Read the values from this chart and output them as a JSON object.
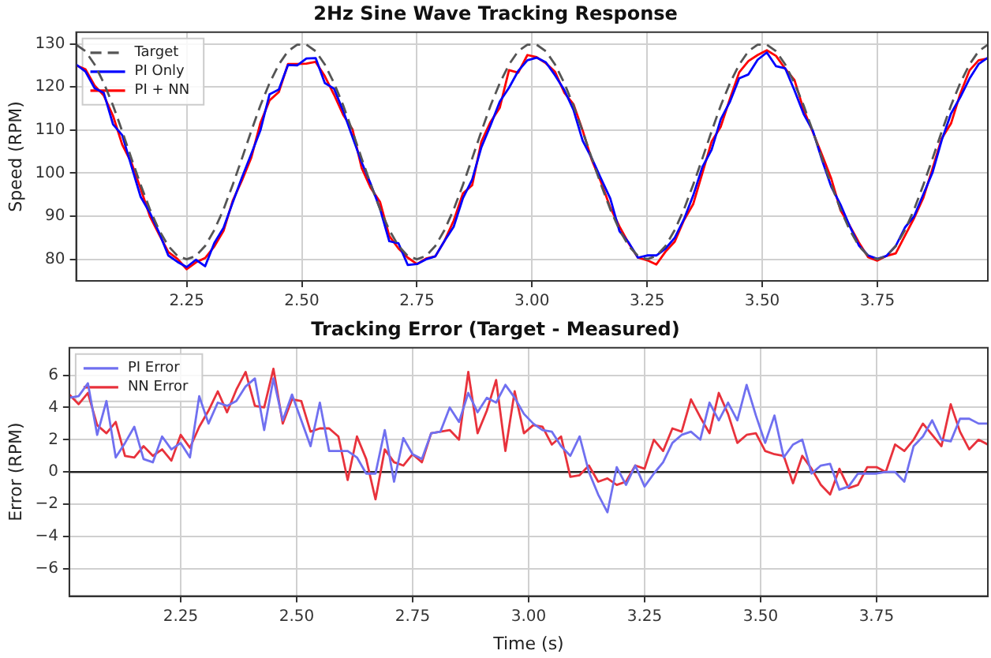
{
  "chart_data": [
    {
      "type": "line",
      "title": "2Hz Sine Wave Tracking Response",
      "ylabel": "Speed (RPM)",
      "legend": "top left",
      "grid": true,
      "marker": "none",
      "xlim": [
        2.01,
        3.99
      ],
      "ylim": [
        75,
        132.7
      ],
      "xticks": [
        {
          "value": 2.25,
          "label": "2.25"
        },
        {
          "value": 2.5,
          "label": "2.50"
        },
        {
          "value": 2.75,
          "label": "2.75"
        },
        {
          "value": 3,
          "label": "3.00"
        },
        {
          "value": 3.25,
          "label": "3.25"
        },
        {
          "value": 3.5,
          "label": "3.50"
        },
        {
          "value": 3.75,
          "label": "3.75"
        }
      ],
      "yticks": [
        80,
        90,
        100,
        110,
        120,
        130
      ],
      "x": [
        2.01,
        2.03,
        2.05,
        2.07,
        2.09,
        2.11,
        2.13,
        2.15,
        2.17,
        2.19,
        2.21,
        2.23,
        2.25,
        2.27,
        2.29,
        2.31,
        2.33,
        2.35,
        2.37,
        2.39,
        2.41,
        2.43,
        2.45,
        2.47,
        2.49,
        2.51,
        2.53,
        2.55,
        2.57,
        2.59,
        2.61,
        2.63,
        2.65,
        2.67,
        2.69,
        2.71,
        2.73,
        2.75,
        2.77,
        2.79,
        2.81,
        2.83,
        2.85,
        2.87,
        2.89,
        2.91,
        2.93,
        2.95,
        2.97,
        2.99,
        3.01,
        3.03,
        3.05,
        3.07,
        3.09,
        3.11,
        3.13,
        3.15,
        3.17,
        3.19,
        3.21,
        3.23,
        3.25,
        3.27,
        3.29,
        3.31,
        3.33,
        3.35,
        3.37,
        3.39,
        3.41,
        3.43,
        3.45,
        3.47,
        3.49,
        3.51,
        3.53,
        3.55,
        3.57,
        3.59,
        3.61,
        3.63,
        3.65,
        3.67,
        3.69,
        3.71,
        3.73,
        3.75,
        3.77,
        3.79,
        3.81,
        3.83,
        3.85,
        3.87,
        3.89,
        3.91,
        3.93,
        3.95,
        3.97,
        3.99
      ],
      "series": [
        {
          "name": "Target",
          "color": "#555555",
          "line_style": "dashed",
          "values": [
            129.8,
            128.3,
            125.2,
            120.9,
            115.7,
            109.7,
            103.4,
            97.3,
            91.6,
            86.8,
            83.1,
            80.8,
            80.0,
            80.8,
            83.1,
            86.8,
            91.6,
            97.3,
            103.4,
            109.7,
            115.7,
            120.9,
            125.2,
            128.3,
            129.8,
            129.8,
            128.3,
            125.2,
            120.9,
            115.7,
            109.7,
            103.4,
            97.3,
            91.6,
            86.8,
            83.1,
            80.8,
            80.0,
            80.8,
            83.1,
            86.8,
            91.6,
            97.3,
            103.4,
            109.7,
            115.7,
            120.9,
            125.2,
            128.3,
            129.8,
            129.8,
            128.3,
            125.2,
            120.9,
            115.7,
            109.7,
            103.4,
            97.3,
            91.6,
            86.8,
            83.1,
            80.8,
            80.0,
            80.8,
            83.1,
            86.8,
            91.6,
            97.3,
            103.4,
            109.7,
            115.7,
            120.9,
            125.2,
            128.3,
            129.8,
            129.8,
            128.3,
            125.2,
            120.9,
            115.7,
            109.7,
            103.4,
            97.3,
            91.6,
            86.8,
            83.1,
            80.8,
            80.0,
            80.8,
            83.1,
            86.8,
            91.6,
            97.3,
            103.4,
            109.7,
            115.7,
            120.9,
            125.2,
            128.3,
            129.8
          ]
        },
        {
          "name": "PI Only",
          "color": "#0000ff",
          "values": [
            125.2,
            123.6,
            119.7,
            118.6,
            111.3,
            108.8,
            101.6,
            94.5,
            90.8,
            86.2,
            80.9,
            79.4,
            78.2,
            79.9,
            78.4,
            83.8,
            87.3,
            93.2,
            99.0,
            104.4,
            109.9,
            118.3,
            119.4,
            125.1,
            125.0,
            126.6,
            126.7,
            120.9,
            119.6,
            114.4,
            108.4,
            102.5,
            97.4,
            91.7,
            84.2,
            83.7,
            78.7,
            78.9,
            80.0,
            80.7,
            84.3,
            87.6,
            94.2,
            98.5,
            106.0,
            111.1,
            116.6,
            119.8,
            123.7,
            126.2,
            126.8,
            125.7,
            122.7,
            119.3,
            114.7,
            107.5,
            103.4,
            98.7,
            94.1,
            86.5,
            83.9,
            80.4,
            80.9,
            80.9,
            82.5,
            85.0,
            89.3,
            94.8,
            101.4,
            105.4,
            112.5,
            116.6,
            122.0,
            122.9,
            126.3,
            128.0,
            124.8,
            124.3,
            119.2,
            113.7,
            109.8,
            103.0,
            96.8,
            92.7,
            87.7,
            83.2,
            80.9,
            80.1,
            80.8,
            83.1,
            87.4,
            90.0,
            95.1,
            100.2,
            107.7,
            113.8,
            117.6,
            121.9,
            125.3,
            126.8
          ]
        },
        {
          "name": "PI + NN",
          "color": "#ff0000",
          "values": [
            125.0,
            124.1,
            120.3,
            118.0,
            113.3,
            106.6,
            102.4,
            96.4,
            90.0,
            85.8,
            81.7,
            80.1,
            77.7,
            79.3,
            80.3,
            83.0,
            86.6,
            93.6,
            98.3,
            103.5,
            111.6,
            116.9,
            118.8,
            125.3,
            125.3,
            125.4,
            125.8,
            122.5,
            118.2,
            113.5,
            110.2,
            101.2,
            96.5,
            93.3,
            85.4,
            82.5,
            80.4,
            78.9,
            80.2,
            80.7,
            84.3,
            89.0,
            95.3,
            97.2,
            107.3,
            111.9,
            115.2,
            123.9,
            123.3,
            127.4,
            126.9,
            125.5,
            123.5,
            118.7,
            116.0,
            109.9,
            103.0,
            97.9,
            92.0,
            87.6,
            83.7,
            80.4,
            79.8,
            78.8,
            81.8,
            84.1,
            89.1,
            92.8,
            100.0,
            107.3,
            110.8,
            117.3,
            123.4,
            126.0,
            127.4,
            128.5,
            127.2,
            124.2,
            121.6,
            114.7,
            109.5,
            104.2,
            98.7,
            91.4,
            87.8,
            83.9,
            80.5,
            79.7,
            80.8,
            81.4,
            85.5,
            89.6,
            94.3,
            101.1,
            108.1,
            111.5,
            118.4,
            123.8,
            126.2,
            126.6
          ]
        }
      ]
    },
    {
      "type": "line",
      "title": "Tracking Error (Target - Measured)",
      "xlabel": "Time (s)",
      "ylabel": "Error (RPM)",
      "legend": "top left",
      "grid": true,
      "marker": "none",
      "xlim": [
        2.01,
        3.99
      ],
      "ylim": [
        -7.7,
        7.7
      ],
      "xticks": [
        {
          "value": 2.25,
          "label": "2.25"
        },
        {
          "value": 2.5,
          "label": "2.50"
        },
        {
          "value": 2.75,
          "label": "2.75"
        },
        {
          "value": 3,
          "label": "3.00"
        },
        {
          "value": 3.25,
          "label": "3.25"
        },
        {
          "value": 3.5,
          "label": "3.50"
        },
        {
          "value": 3.75,
          "label": "3.75"
        }
      ],
      "yticks": [
        {
          "value": -6,
          "label": "−6"
        },
        {
          "value": -4,
          "label": "−4"
        },
        {
          "value": -2,
          "label": "−2"
        },
        0,
        2,
        4,
        6
      ],
      "ref_lines": [
        {
          "axis": "y",
          "value": 0,
          "color": "#222222"
        }
      ],
      "x": [
        2.01,
        2.03,
        2.05,
        2.07,
        2.09,
        2.11,
        2.13,
        2.15,
        2.17,
        2.19,
        2.21,
        2.23,
        2.25,
        2.27,
        2.29,
        2.31,
        2.33,
        2.35,
        2.37,
        2.39,
        2.41,
        2.43,
        2.45,
        2.47,
        2.49,
        2.51,
        2.53,
        2.55,
        2.57,
        2.59,
        2.61,
        2.63,
        2.65,
        2.67,
        2.69,
        2.71,
        2.73,
        2.75,
        2.77,
        2.79,
        2.81,
        2.83,
        2.85,
        2.87,
        2.89,
        2.91,
        2.93,
        2.95,
        2.97,
        2.99,
        3.01,
        3.03,
        3.05,
        3.07,
        3.09,
        3.11,
        3.13,
        3.15,
        3.17,
        3.19,
        3.21,
        3.23,
        3.25,
        3.27,
        3.29,
        3.31,
        3.33,
        3.35,
        3.37,
        3.39,
        3.41,
        3.43,
        3.45,
        3.47,
        3.49,
        3.51,
        3.53,
        3.55,
        3.57,
        3.59,
        3.61,
        3.63,
        3.65,
        3.67,
        3.69,
        3.71,
        3.73,
        3.75,
        3.77,
        3.79,
        3.81,
        3.83,
        3.85,
        3.87,
        3.89,
        3.91,
        3.93,
        3.95,
        3.97,
        3.99
      ],
      "series": [
        {
          "name": "PI Error",
          "color": "#7070f0",
          "values": [
            4.6,
            4.7,
            5.5,
            2.3,
            4.4,
            0.9,
            1.8,
            2.8,
            0.8,
            0.6,
            2.2,
            1.4,
            1.8,
            0.9,
            4.7,
            3.0,
            4.3,
            4.1,
            4.4,
            5.3,
            5.8,
            2.6,
            5.8,
            3.2,
            4.8,
            3.2,
            1.6,
            4.3,
            1.3,
            1.3,
            1.3,
            0.9,
            -0.1,
            -0.1,
            2.6,
            -0.6,
            2.1,
            1.1,
            0.8,
            2.4,
            2.5,
            4.0,
            3.1,
            4.9,
            3.7,
            4.6,
            4.3,
            5.4,
            4.6,
            3.6,
            3.0,
            2.6,
            2.5,
            1.6,
            1.0,
            2.2,
            0.0,
            -1.4,
            -2.5,
            0.3,
            -0.8,
            0.4,
            -0.9,
            -0.1,
            0.6,
            1.8,
            2.3,
            2.5,
            2.0,
            4.3,
            3.2,
            4.3,
            3.2,
            5.4,
            3.5,
            1.8,
            3.5,
            0.9,
            1.7,
            2.0,
            -0.1,
            0.4,
            0.5,
            -1.1,
            -0.9,
            -0.1,
            -0.1,
            -0.1,
            0.0,
            0.0,
            -0.6,
            1.6,
            2.2,
            3.2,
            2.0,
            1.9,
            3.3,
            3.3,
            3.0,
            3.0
          ]
        },
        {
          "name": "NN Error",
          "color": "#e8323c",
          "values": [
            4.8,
            4.2,
            4.9,
            2.9,
            2.4,
            3.1,
            1.0,
            0.9,
            1.6,
            1.0,
            1.4,
            0.7,
            2.3,
            1.5,
            2.8,
            3.8,
            5.0,
            3.7,
            5.1,
            6.2,
            4.1,
            4.0,
            6.4,
            3.0,
            4.5,
            4.4,
            2.5,
            2.7,
            2.7,
            2.2,
            -0.5,
            2.2,
            0.8,
            -1.7,
            1.4,
            0.6,
            0.4,
            1.1,
            0.6,
            2.4,
            2.5,
            2.6,
            2.0,
            6.2,
            2.4,
            3.8,
            5.7,
            1.3,
            5.0,
            2.4,
            2.9,
            2.8,
            1.7,
            2.2,
            -0.3,
            -0.2,
            0.4,
            -0.6,
            -0.4,
            -0.8,
            -0.6,
            0.4,
            0.2,
            2.0,
            1.3,
            2.7,
            2.5,
            4.5,
            3.4,
            2.4,
            4.9,
            3.6,
            1.8,
            2.3,
            2.4,
            1.3,
            1.1,
            1.0,
            -0.7,
            1.0,
            0.2,
            -0.8,
            -1.4,
            0.2,
            -1.0,
            -0.8,
            0.3,
            0.3,
            0.0,
            1.7,
            1.3,
            2.0,
            3.0,
            2.3,
            1.6,
            4.2,
            2.5,
            1.4,
            2.0,
            1.7
          ]
        }
      ]
    }
  ]
}
